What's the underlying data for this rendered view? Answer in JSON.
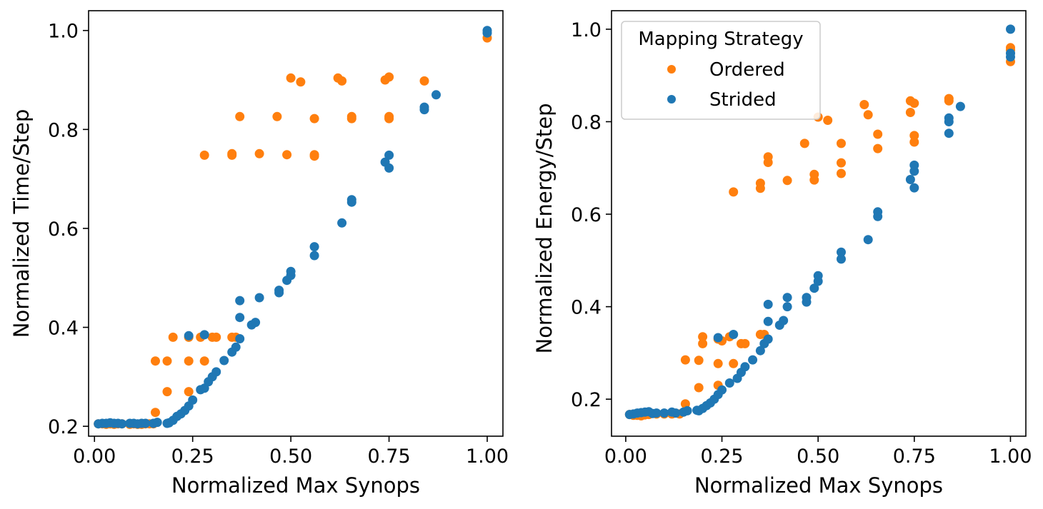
{
  "colors": {
    "ordered": "#ff7f0e",
    "strided": "#1f77b4"
  },
  "legend": {
    "title": "Mapping Strategy",
    "entries": [
      {
        "label": "Ordered",
        "color": "#ff7f0e"
      },
      {
        "label": "Strided",
        "color": "#1f77b4"
      }
    ]
  },
  "chart_data": [
    {
      "type": "scatter",
      "title": "",
      "xlabel": "Normalized Max Synops",
      "ylabel": "Normalized Time/Step",
      "xlim": [
        -0.015,
        1.04
      ],
      "ylim": [
        0.18,
        1.04
      ],
      "xticks": [
        0.0,
        0.25,
        0.5,
        0.75,
        1.0
      ],
      "xtick_labels": [
        "0.00",
        "0.25",
        "0.50",
        "0.75",
        "1.00"
      ],
      "yticks": [
        0.2,
        0.4,
        0.6,
        0.8,
        1.0
      ],
      "ytick_labels": [
        "0.2",
        "0.4",
        "0.6",
        "0.8",
        "1.0"
      ],
      "series": [
        {
          "name": "Ordered",
          "points": [
            [
              0.01,
              0.205
            ],
            [
              0.02,
              0.205
            ],
            [
              0.03,
              0.204
            ],
            [
              0.04,
              0.205
            ],
            [
              0.05,
              0.204
            ],
            [
              0.06,
              0.205
            ],
            [
              0.07,
              0.205
            ],
            [
              0.09,
              0.204
            ],
            [
              0.1,
              0.205
            ],
            [
              0.11,
              0.204
            ],
            [
              0.12,
              0.204
            ],
            [
              0.13,
              0.205
            ],
            [
              0.14,
              0.205
            ],
            [
              0.15,
              0.205
            ],
            [
              0.155,
              0.228
            ],
            [
              0.155,
              0.332
            ],
            [
              0.185,
              0.27
            ],
            [
              0.185,
              0.332
            ],
            [
              0.2,
              0.38
            ],
            [
              0.24,
              0.27
            ],
            [
              0.24,
              0.38
            ],
            [
              0.24,
              0.332
            ],
            [
              0.27,
              0.38
            ],
            [
              0.28,
              0.332
            ],
            [
              0.3,
              0.38
            ],
            [
              0.31,
              0.38
            ],
            [
              0.35,
              0.38
            ],
            [
              0.36,
              0.38
            ],
            [
              0.28,
              0.748
            ],
            [
              0.35,
              0.748
            ],
            [
              0.35,
              0.751
            ],
            [
              0.37,
              0.826
            ],
            [
              0.42,
              0.751
            ],
            [
              0.465,
              0.826
            ],
            [
              0.49,
              0.749
            ],
            [
              0.5,
              0.904
            ],
            [
              0.525,
              0.896
            ],
            [
              0.56,
              0.749
            ],
            [
              0.56,
              0.746
            ],
            [
              0.56,
              0.822
            ],
            [
              0.62,
              0.904
            ],
            [
              0.63,
              0.898
            ],
            [
              0.655,
              0.826
            ],
            [
              0.655,
              0.822
            ],
            [
              0.74,
              0.9
            ],
            [
              0.75,
              0.906
            ],
            [
              0.75,
              0.826
            ],
            [
              0.75,
              0.822
            ],
            [
              0.84,
              0.898
            ],
            [
              1.0,
              0.985
            ]
          ]
        },
        {
          "name": "Strided",
          "points": [
            [
              0.01,
              0.205
            ],
            [
              0.02,
              0.206
            ],
            [
              0.03,
              0.206
            ],
            [
              0.04,
              0.207
            ],
            [
              0.05,
              0.206
            ],
            [
              0.06,
              0.206
            ],
            [
              0.07,
              0.205
            ],
            [
              0.09,
              0.206
            ],
            [
              0.1,
              0.206
            ],
            [
              0.11,
              0.205
            ],
            [
              0.12,
              0.206
            ],
            [
              0.13,
              0.206
            ],
            [
              0.15,
              0.206
            ],
            [
              0.16,
              0.208
            ],
            [
              0.185,
              0.206
            ],
            [
              0.19,
              0.207
            ],
            [
              0.2,
              0.212
            ],
            [
              0.21,
              0.22
            ],
            [
              0.22,
              0.225
            ],
            [
              0.23,
              0.232
            ],
            [
              0.24,
              0.241
            ],
            [
              0.24,
              0.383
            ],
            [
              0.25,
              0.253
            ],
            [
              0.27,
              0.274
            ],
            [
              0.28,
              0.277
            ],
            [
              0.28,
              0.385
            ],
            [
              0.29,
              0.29
            ],
            [
              0.3,
              0.3
            ],
            [
              0.31,
              0.31
            ],
            [
              0.33,
              0.333
            ],
            [
              0.35,
              0.35
            ],
            [
              0.36,
              0.36
            ],
            [
              0.37,
              0.377
            ],
            [
              0.37,
              0.42
            ],
            [
              0.37,
              0.454
            ],
            [
              0.4,
              0.405
            ],
            [
              0.41,
              0.41
            ],
            [
              0.42,
              0.46
            ],
            [
              0.47,
              0.47
            ],
            [
              0.47,
              0.475
            ],
            [
              0.49,
              0.495
            ],
            [
              0.5,
              0.505
            ],
            [
              0.5,
              0.513
            ],
            [
              0.56,
              0.545
            ],
            [
              0.56,
              0.563
            ],
            [
              0.63,
              0.611
            ],
            [
              0.655,
              0.653
            ],
            [
              0.655,
              0.658
            ],
            [
              0.74,
              0.734
            ],
            [
              0.75,
              0.722
            ],
            [
              0.75,
              0.748
            ],
            [
              0.84,
              0.84
            ],
            [
              0.84,
              0.845
            ],
            [
              0.87,
              0.87
            ],
            [
              1.0,
              0.995
            ],
            [
              1.0,
              1.0
            ]
          ]
        }
      ]
    },
    {
      "type": "scatter",
      "title": "",
      "xlabel": "Normalized Max Synops",
      "ylabel": "Normalized Energy/Step",
      "xlim": [
        -0.037,
        1.04
      ],
      "ylim": [
        0.12,
        1.04
      ],
      "xticks": [
        0.0,
        0.25,
        0.5,
        0.75,
        1.0
      ],
      "xtick_labels": [
        "0.00",
        "0.25",
        "0.50",
        "0.75",
        "1.00"
      ],
      "yticks": [
        0.2,
        0.4,
        0.6,
        0.8,
        1.0
      ],
      "ytick_labels": [
        "0.2",
        "0.4",
        "0.6",
        "0.8",
        "1.0"
      ],
      "series": [
        {
          "name": "Ordered",
          "points": [
            [
              0.01,
              0.167
            ],
            [
              0.02,
              0.165
            ],
            [
              0.03,
              0.165
            ],
            [
              0.04,
              0.164
            ],
            [
              0.05,
              0.166
            ],
            [
              0.06,
              0.167
            ],
            [
              0.08,
              0.168
            ],
            [
              0.1,
              0.168
            ],
            [
              0.12,
              0.168
            ],
            [
              0.14,
              0.168
            ],
            [
              0.155,
              0.19
            ],
            [
              0.155,
              0.285
            ],
            [
              0.19,
              0.225
            ],
            [
              0.19,
              0.284
            ],
            [
              0.2,
              0.32
            ],
            [
              0.2,
              0.335
            ],
            [
              0.24,
              0.23
            ],
            [
              0.24,
              0.277
            ],
            [
              0.24,
              0.33
            ],
            [
              0.25,
              0.326
            ],
            [
              0.27,
              0.335
            ],
            [
              0.28,
              0.277
            ],
            [
              0.3,
              0.32
            ],
            [
              0.31,
              0.32
            ],
            [
              0.35,
              0.34
            ],
            [
              0.36,
              0.34
            ],
            [
              0.28,
              0.648
            ],
            [
              0.35,
              0.656
            ],
            [
              0.35,
              0.667
            ],
            [
              0.37,
              0.712
            ],
            [
              0.37,
              0.724
            ],
            [
              0.42,
              0.673
            ],
            [
              0.465,
              0.753
            ],
            [
              0.49,
              0.674
            ],
            [
              0.49,
              0.686
            ],
            [
              0.5,
              0.81
            ],
            [
              0.525,
              0.803
            ],
            [
              0.56,
              0.688
            ],
            [
              0.56,
              0.711
            ],
            [
              0.56,
              0.753
            ],
            [
              0.62,
              0.837
            ],
            [
              0.63,
              0.815
            ],
            [
              0.655,
              0.742
            ],
            [
              0.655,
              0.773
            ],
            [
              0.74,
              0.82
            ],
            [
              0.74,
              0.845
            ],
            [
              0.75,
              0.84
            ],
            [
              0.75,
              0.77
            ],
            [
              0.75,
              0.756
            ],
            [
              0.84,
              0.845
            ],
            [
              0.84,
              0.85
            ],
            [
              1.0,
              0.93
            ],
            [
              1.0,
              0.96
            ],
            [
              1.0,
              0.955
            ]
          ]
        },
        {
          "name": "Strided",
          "points": [
            [
              0.01,
              0.167
            ],
            [
              0.02,
              0.168
            ],
            [
              0.03,
              0.17
            ],
            [
              0.04,
              0.171
            ],
            [
              0.05,
              0.172
            ],
            [
              0.06,
              0.173
            ],
            [
              0.07,
              0.169
            ],
            [
              0.08,
              0.17
            ],
            [
              0.1,
              0.17
            ],
            [
              0.12,
              0.172
            ],
            [
              0.13,
              0.17
            ],
            [
              0.15,
              0.172
            ],
            [
              0.16,
              0.175
            ],
            [
              0.185,
              0.176
            ],
            [
              0.19,
              0.175
            ],
            [
              0.2,
              0.18
            ],
            [
              0.21,
              0.186
            ],
            [
              0.22,
              0.192
            ],
            [
              0.23,
              0.2
            ],
            [
              0.24,
              0.21
            ],
            [
              0.24,
              0.333
            ],
            [
              0.25,
              0.22
            ],
            [
              0.27,
              0.235
            ],
            [
              0.28,
              0.34
            ],
            [
              0.29,
              0.245
            ],
            [
              0.3,
              0.258
            ],
            [
              0.31,
              0.27
            ],
            [
              0.33,
              0.285
            ],
            [
              0.35,
              0.305
            ],
            [
              0.36,
              0.32
            ],
            [
              0.37,
              0.33
            ],
            [
              0.37,
              0.368
            ],
            [
              0.37,
              0.405
            ],
            [
              0.4,
              0.36
            ],
            [
              0.41,
              0.37
            ],
            [
              0.42,
              0.4
            ],
            [
              0.42,
              0.42
            ],
            [
              0.47,
              0.41
            ],
            [
              0.47,
              0.42
            ],
            [
              0.49,
              0.44
            ],
            [
              0.5,
              0.455
            ],
            [
              0.5,
              0.467
            ],
            [
              0.56,
              0.503
            ],
            [
              0.56,
              0.518
            ],
            [
              0.63,
              0.545
            ],
            [
              0.655,
              0.595
            ],
            [
              0.655,
              0.605
            ],
            [
              0.74,
              0.675
            ],
            [
              0.75,
              0.657
            ],
            [
              0.75,
              0.693
            ],
            [
              0.75,
              0.706
            ],
            [
              0.84,
              0.775
            ],
            [
              0.84,
              0.8
            ],
            [
              0.84,
              0.808
            ],
            [
              0.87,
              0.833
            ],
            [
              1.0,
              0.94
            ],
            [
              1.0,
              0.948
            ],
            [
              1.0,
              1.0
            ]
          ]
        }
      ]
    }
  ]
}
